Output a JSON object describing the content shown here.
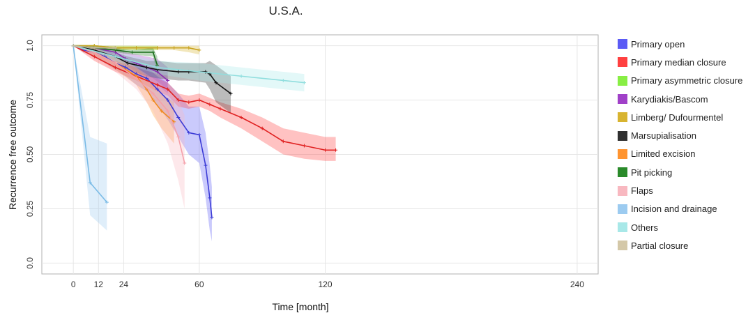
{
  "chart_data": {
    "type": "line",
    "title": "U.S.A.",
    "xlabel": "Time [month]",
    "ylabel": "Recurrence free outcome",
    "x_ticks": [
      0,
      12,
      24,
      60,
      120,
      240
    ],
    "y_ticks": [
      0.0,
      0.25,
      0.5,
      0.75,
      1.0
    ],
    "y_tick_labels": [
      "0.0",
      "0.25",
      "0.50",
      "0.75",
      "1.0"
    ],
    "xlim": [
      -15,
      250
    ],
    "ylim": [
      -0.05,
      1.05
    ],
    "grid": true,
    "legend_position": "right",
    "series": [
      {
        "name": "Primary open",
        "color": "#3b3bd6",
        "fill": "#5b5bf5",
        "x": [
          0,
          5,
          10,
          15,
          20,
          25,
          30,
          35,
          40,
          45,
          50,
          55,
          60,
          63,
          65,
          66
        ],
        "y": [
          1.0,
          0.98,
          0.97,
          0.95,
          0.92,
          0.9,
          0.87,
          0.85,
          0.8,
          0.75,
          0.67,
          0.6,
          0.59,
          0.45,
          0.3,
          0.21
        ],
        "lower": [
          1.0,
          0.97,
          0.95,
          0.92,
          0.89,
          0.86,
          0.82,
          0.79,
          0.73,
          0.66,
          0.58,
          0.5,
          0.46,
          0.3,
          0.15,
          0.1
        ],
        "upper": [
          1.0,
          0.99,
          0.99,
          0.98,
          0.96,
          0.94,
          0.92,
          0.9,
          0.86,
          0.83,
          0.78,
          0.72,
          0.72,
          0.6,
          0.45,
          0.35
        ]
      },
      {
        "name": "Primary median closure",
        "color": "#e02020",
        "fill": "#ff4040",
        "x": [
          0,
          10,
          20,
          30,
          40,
          45,
          50,
          55,
          60,
          65,
          70,
          80,
          90,
          100,
          110,
          120,
          125
        ],
        "y": [
          1.0,
          0.95,
          0.9,
          0.86,
          0.82,
          0.8,
          0.75,
          0.74,
          0.75,
          0.73,
          0.71,
          0.67,
          0.62,
          0.56,
          0.54,
          0.52,
          0.52
        ],
        "lower": [
          1.0,
          0.93,
          0.88,
          0.84,
          0.79,
          0.77,
          0.72,
          0.71,
          0.72,
          0.7,
          0.67,
          0.62,
          0.56,
          0.5,
          0.48,
          0.47,
          0.47
        ],
        "upper": [
          1.0,
          0.97,
          0.92,
          0.88,
          0.85,
          0.83,
          0.78,
          0.77,
          0.78,
          0.76,
          0.74,
          0.71,
          0.67,
          0.62,
          0.6,
          0.58,
          0.58
        ]
      },
      {
        "name": "Primary asymmetric closure",
        "color": "#66cc22",
        "fill": "#88ee44",
        "x": [
          0,
          10,
          20,
          30,
          40
        ],
        "y": [
          1.0,
          1.0,
          0.99,
          0.99,
          0.99
        ],
        "lower": [
          1.0,
          0.99,
          0.98,
          0.98,
          0.98
        ],
        "upper": [
          1.0,
          1.0,
          1.0,
          1.0,
          1.0
        ]
      },
      {
        "name": "Karydiakis/Bascom",
        "color": "#8a2eb0",
        "fill": "#a040c8",
        "x": [
          0,
          10,
          20,
          25,
          30,
          35,
          40,
          45
        ],
        "y": [
          1.0,
          0.99,
          0.97,
          0.94,
          0.92,
          0.9,
          0.88,
          0.84
        ],
        "lower": [
          1.0,
          0.98,
          0.95,
          0.91,
          0.88,
          0.85,
          0.82,
          0.78
        ],
        "upper": [
          1.0,
          1.0,
          0.99,
          0.97,
          0.96,
          0.95,
          0.94,
          0.9
        ]
      },
      {
        "name": "Limberg/ Dufourmentel",
        "color": "#c8a21e",
        "fill": "#d8b430",
        "x": [
          0,
          10,
          20,
          30,
          40,
          48,
          55,
          60
        ],
        "y": [
          1.0,
          1.0,
          0.99,
          0.99,
          0.99,
          0.99,
          0.99,
          0.98
        ],
        "lower": [
          1.0,
          0.99,
          0.98,
          0.98,
          0.98,
          0.98,
          0.97,
          0.96
        ],
        "upper": [
          1.0,
          1.0,
          1.0,
          1.0,
          1.0,
          1.0,
          1.0,
          1.0
        ]
      },
      {
        "name": "Marsupialisation",
        "color": "#111111",
        "fill": "#303030",
        "x": [
          0,
          10,
          20,
          26,
          35,
          40,
          50,
          55,
          63,
          65,
          68,
          75
        ],
        "y": [
          1.0,
          0.98,
          0.95,
          0.92,
          0.9,
          0.89,
          0.88,
          0.88,
          0.88,
          0.87,
          0.83,
          0.78
        ],
        "lower": [
          1.0,
          0.97,
          0.93,
          0.89,
          0.86,
          0.85,
          0.84,
          0.84,
          0.83,
          0.8,
          0.74,
          0.69
        ],
        "upper": [
          1.0,
          0.99,
          0.97,
          0.95,
          0.93,
          0.93,
          0.92,
          0.92,
          0.92,
          0.93,
          0.91,
          0.86
        ]
      },
      {
        "name": "Limited excision",
        "color": "#f08a20",
        "fill": "#ff9430",
        "x": [
          0,
          10,
          20,
          30,
          35,
          38,
          42,
          48
        ],
        "y": [
          1.0,
          0.97,
          0.92,
          0.86,
          0.8,
          0.75,
          0.7,
          0.65
        ],
        "lower": [
          1.0,
          0.95,
          0.89,
          0.82,
          0.74,
          0.68,
          0.62,
          0.55
        ],
        "upper": [
          1.0,
          0.99,
          0.95,
          0.9,
          0.86,
          0.82,
          0.78,
          0.74
        ]
      },
      {
        "name": "Pit picking",
        "color": "#1c6e1c",
        "fill": "#2a8a2a",
        "x": [
          0,
          10,
          20,
          28,
          38,
          40
        ],
        "y": [
          1.0,
          0.99,
          0.98,
          0.97,
          0.97,
          0.91
        ],
        "lower": [
          1.0,
          0.98,
          0.97,
          0.96,
          0.95,
          0.87
        ],
        "upper": [
          1.0,
          1.0,
          0.99,
          0.98,
          0.99,
          0.95
        ]
      },
      {
        "name": "Flaps",
        "color": "#f5a0aa",
        "fill": "#f8b8c0",
        "x": [
          0,
          10,
          20,
          30,
          38,
          45,
          50,
          53
        ],
        "y": [
          1.0,
          0.97,
          0.92,
          0.85,
          0.78,
          0.7,
          0.58,
          0.46
        ],
        "lower": [
          1.0,
          0.94,
          0.88,
          0.8,
          0.7,
          0.55,
          0.38,
          0.25
        ],
        "upper": [
          1.0,
          0.99,
          0.96,
          0.9,
          0.85,
          0.8,
          0.75,
          0.68
        ]
      },
      {
        "name": "Incision and drainage",
        "color": "#7abbe6",
        "fill": "#9ccbf0",
        "x": [
          0,
          8,
          16
        ],
        "y": [
          1.0,
          0.37,
          0.28
        ],
        "lower": [
          1.0,
          0.22,
          0.15
        ],
        "upper": [
          1.0,
          0.58,
          0.55
        ]
      },
      {
        "name": "Others",
        "color": "#90dede",
        "fill": "#a8e8e8",
        "x": [
          0,
          20,
          40,
          60,
          80,
          100,
          110
        ],
        "y": [
          1.0,
          0.95,
          0.9,
          0.88,
          0.86,
          0.84,
          0.83
        ],
        "lower": [
          1.0,
          0.93,
          0.87,
          0.84,
          0.82,
          0.8,
          0.79
        ],
        "upper": [
          1.0,
          0.97,
          0.93,
          0.92,
          0.9,
          0.88,
          0.87
        ]
      },
      {
        "name": "Partial closure",
        "color": "#c5b99a",
        "fill": "#d4c8a8",
        "x": [
          0,
          10,
          20
        ],
        "y": [
          1.0,
          0.99,
          0.99
        ],
        "lower": [
          1.0,
          0.98,
          0.98
        ],
        "upper": [
          1.0,
          1.0,
          1.0
        ]
      }
    ]
  }
}
